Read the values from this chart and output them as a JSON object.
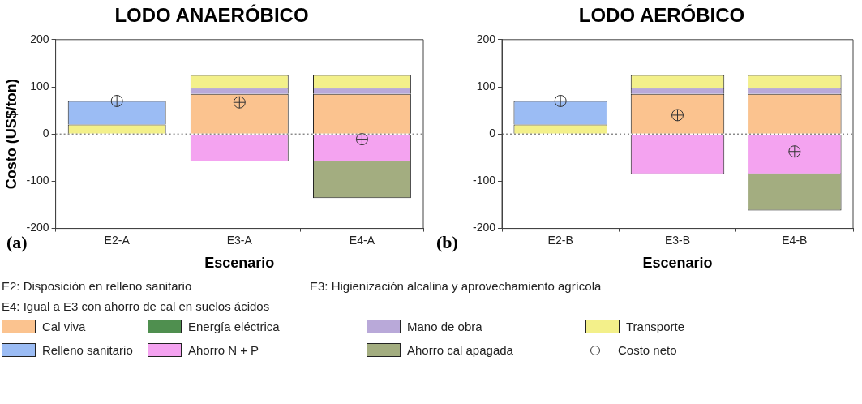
{
  "chart_data": [
    {
      "type": "bar",
      "title": "LODO ANAERÓBICO",
      "xlabel": "Escenario",
      "ylabel": "Costo (US$/ton)",
      "categories": [
        "E2-A",
        "E3-A",
        "E4-A"
      ],
      "stacked": true,
      "ylim": [
        -200,
        200
      ],
      "yticks": [
        -200,
        -100,
        0,
        100,
        200
      ],
      "grid": false,
      "legend": "bottom",
      "series": [
        {
          "name": "Cal viva",
          "color": "#fbc38f",
          "values": [
            0,
            85,
            85
          ]
        },
        {
          "name": "Energía eléctrica",
          "color": "#4f8f4f",
          "values": [
            0,
            0,
            0
          ]
        },
        {
          "name": "Mano de obra",
          "color": "#b9a9d9",
          "values": [
            0,
            13,
            13
          ]
        },
        {
          "name": "Transporte",
          "color": "#f3f08a",
          "values": [
            20,
            27,
            27
          ]
        },
        {
          "name": "Relleno sanitario",
          "color": "#9bbcf4",
          "values": [
            50,
            0,
            0
          ]
        },
        {
          "name": "Ahorro N + P",
          "color": "#f4a3f0",
          "values": [
            0,
            -58,
            -58
          ]
        },
        {
          "name": "Ahorro cal apagada",
          "color": "#a3ad80",
          "values": [
            0,
            0,
            -78
          ]
        },
        {
          "name": "Costo neto",
          "type": "scatter",
          "marker": "circle",
          "color": "#333333",
          "x": [
            "E2-A",
            "E3-A",
            "E4-A"
          ],
          "values": [
            70,
            67,
            -11
          ]
        }
      ],
      "ref_lines": [
        {
          "axis": "y",
          "value": 0,
          "line_style": "dotted",
          "color": "#555555"
        }
      ],
      "annotations": [
        "(a)",
        "E2: Disposición en relleno sanitario",
        "E3: Higienización alcalina y aprovechamiento agrícola",
        "E4: Igual a E3 con ahorro de cal en suelos ácidos"
      ]
    },
    {
      "type": "bar",
      "title": "LODO AERÓBICO",
      "xlabel": "Escenario",
      "categories": [
        "E2-B",
        "E3-B",
        "E4-B"
      ],
      "stacked": true,
      "ylim": [
        -200,
        200
      ],
      "yticks": [
        -200,
        -100,
        0,
        100,
        200
      ],
      "grid": false,
      "series": [
        {
          "color": "#fbc38f",
          "values": [
            0,
            85,
            85
          ]
        },
        {
          "color": "#4f8f4f",
          "values": [
            0,
            0,
            0
          ]
        },
        {
          "color": "#b9a9d9",
          "values": [
            0,
            13,
            13
          ]
        },
        {
          "color": "#f3f08a",
          "values": [
            20,
            27,
            27
          ]
        },
        {
          "color": "#9bbcf4",
          "values": [
            50,
            0,
            0
          ]
        },
        {
          "color": "#f4a3f0",
          "values": [
            0,
            -85,
            -85
          ]
        },
        {
          "color": "#a3ad80",
          "values": [
            0,
            0,
            -77
          ]
        },
        {
          "type": "scatter",
          "marker": "circle",
          "color": "#333333",
          "x": [
            "E2-B",
            "E3-B",
            "E4-B"
          ],
          "values": [
            70,
            40,
            -37
          ]
        }
      ],
      "ref_lines": [
        {
          "axis": "y",
          "value": 0,
          "line_style": "dotted",
          "color": "#555555"
        }
      ],
      "annotations": [
        "(b)"
      ]
    }
  ]
}
